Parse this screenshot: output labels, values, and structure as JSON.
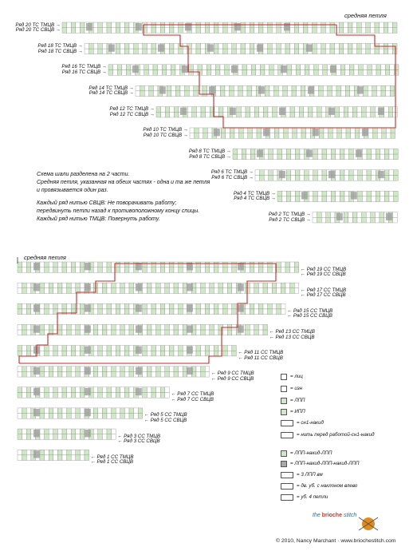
{
  "top_chart": {
    "center_label": "средняя петля",
    "rows": [
      {
        "row": 20,
        "labels": [
          "Ряд 20 ТС ТМЦВ",
          "Ряд 20 ТС СВЦВ"
        ]
      },
      {
        "row": 18,
        "labels": [
          "Ряд 18 ТС ТМЦВ",
          "Ряд 18 ТС СВЦВ"
        ]
      },
      {
        "row": 16,
        "labels": [
          "Ряд 16 ТС ТМЦВ",
          "Ряд 16 ТС СВЦВ"
        ]
      },
      {
        "row": 14,
        "labels": [
          "Ряд 14 ТС ТМЦВ",
          "Ряд 14 ТС СВЦВ"
        ]
      },
      {
        "row": 12,
        "labels": [
          "Ряд 12 ТС ТМЦВ",
          "Ряд 12 ТС СВЦВ"
        ]
      },
      {
        "row": 10,
        "labels": [
          "Ряд 10 ТС ТМЦВ",
          "Ряд 10 ТС СВЦВ"
        ]
      },
      {
        "row": 8,
        "labels": [
          "Ряд 8 ТС ТМЦВ",
          "Ряд 8 ТС СВЦВ"
        ]
      },
      {
        "row": 6,
        "labels": [
          "Ряд 6 ТС ТМЦВ",
          "Ряд 6 ТС СВЦВ"
        ]
      },
      {
        "row": 4,
        "labels": [
          "Ряд 4 ТС ТМЦВ",
          "Ряд 4 ТС СВЦВ"
        ]
      },
      {
        "row": 2,
        "labels": [
          "Ряд 2 ТС ТМЦВ",
          "Ряд 2 ТС СВЦВ"
        ]
      }
    ]
  },
  "notes": {
    "p1": "Схема шали разделена на 2 части.",
    "p2": "Средняя петля, указанная на обеих частях - одна и та же петля",
    "p3": "и провязывается один раз.",
    "p4": "Каждый ряд нитью СВЦВ: Не поворачивать работу;",
    "p5": "передвинуть петли назад к противоположному концу спицы.",
    "p6": "Каждый ряд нитью ТМЦВ: Повернуть работу."
  },
  "bottom_chart": {
    "center_label": "средняя петля",
    "rows": [
      {
        "row": 19,
        "labels": [
          "Ряд 19 СС ТМЦВ",
          "Ряд 19 СС СВЦВ"
        ]
      },
      {
        "row": 17,
        "labels": [
          "Ряд 17 СС ТМЦВ",
          "Ряд 17 СС СВЦВ"
        ]
      },
      {
        "row": 15,
        "labels": [
          "Ряд 15 СС ТМЦВ",
          "Ряд 15 СС СВЦВ"
        ]
      },
      {
        "row": 13,
        "labels": [
          "Ряд 13 СС ТМЦВ",
          "Ряд 13 СС СВЦВ"
        ]
      },
      {
        "row": 11,
        "labels": [
          "Ряд 11 СС ТМЦВ",
          "Ряд 11 СС СВЦВ"
        ]
      },
      {
        "row": 9,
        "labels": [
          "Ряд 9 СС ТМЦВ",
          "Ряд 9 СС СВЦВ"
        ]
      },
      {
        "row": 7,
        "labels": [
          "Ряд 7 СС ТМЦВ",
          "Ряд 7 СС СВЦВ"
        ]
      },
      {
        "row": 5,
        "labels": [
          "Ряд 5 СС ТМЦВ",
          "Ряд 5 СС СВЦВ"
        ]
      },
      {
        "row": 3,
        "labels": [
          "Ряд 3 СС ТМЦВ",
          "Ряд 3 СС СВЦВ"
        ]
      },
      {
        "row": 1,
        "labels": [
          "Ряд 1 СС ТМЦВ",
          "Ряд 1 СС СВЦВ"
        ]
      }
    ]
  },
  "legend": [
    {
      "symbol": "knit-icon",
      "text": "= лиц"
    },
    {
      "symbol": "purl-icon",
      "text": "= изн"
    },
    {
      "symbol": "brioche-knit-icon",
      "text": "= ЛПП"
    },
    {
      "symbol": "brioche-purl-icon",
      "text": "= ИПП"
    },
    {
      "symbol": "sl1yo-icon",
      "text": "= сн1-накид"
    },
    {
      "symbol": "yarn-front-icon",
      "text": "= нить перед работой-сн1-накид"
    },
    {
      "symbol": "increase-3-icon",
      "text": "= ЛПП-накид-ЛПП"
    },
    {
      "symbol": "increase-5-icon",
      "text": "= ЛПП-накид-ЛПП-накид-ЛПП"
    },
    {
      "symbol": "dec-3-icon",
      "text": "= 3 ЛПП вм"
    },
    {
      "symbol": "left-dec-icon",
      "text": "= дв. уб. с наклоном влево"
    },
    {
      "symbol": "dec-4-icon",
      "text": "= уб. 4 петли"
    }
  ],
  "logo": {
    "prefix": "the",
    "brand": "brioche",
    "suffix": "stitch"
  },
  "copyright": "© 2010, Nancy Marchant · www.briochestitch.com",
  "colors": {
    "grid_green": "#cfe8c6",
    "grid_line": "#8a8a8a",
    "red_outline": "#c62828",
    "gray_cell": "#9e9e9e"
  }
}
